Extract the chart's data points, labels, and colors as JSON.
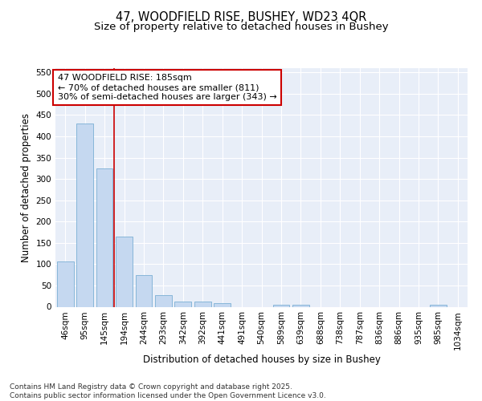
{
  "title_line1": "47, WOODFIELD RISE, BUSHEY, WD23 4QR",
  "title_line2": "Size of property relative to detached houses in Bushey",
  "xlabel": "Distribution of detached houses by size in Bushey",
  "ylabel": "Number of detached properties",
  "categories": [
    "46sqm",
    "95sqm",
    "145sqm",
    "194sqm",
    "244sqm",
    "293sqm",
    "342sqm",
    "392sqm",
    "441sqm",
    "491sqm",
    "540sqm",
    "589sqm",
    "639sqm",
    "688sqm",
    "738sqm",
    "787sqm",
    "836sqm",
    "886sqm",
    "935sqm",
    "985sqm",
    "1034sqm"
  ],
  "values": [
    106,
    430,
    325,
    165,
    74,
    27,
    12,
    12,
    9,
    0,
    0,
    5,
    5,
    0,
    0,
    0,
    0,
    0,
    0,
    4,
    0
  ],
  "bar_color": "#c5d8f0",
  "bar_edge_color": "#7bafd4",
  "vline_x": 3,
  "vline_color": "#cc0000",
  "annotation_box_text": "47 WOODFIELD RISE: 185sqm\n← 70% of detached houses are smaller (811)\n30% of semi-detached houses are larger (343) →",
  "annotation_box_color": "#cc0000",
  "ylim": [
    0,
    560
  ],
  "yticks": [
    0,
    50,
    100,
    150,
    200,
    250,
    300,
    350,
    400,
    450,
    500,
    550
  ],
  "bg_color": "#e8eef8",
  "grid_color": "#ffffff",
  "footer_text": "Contains HM Land Registry data © Crown copyright and database right 2025.\nContains public sector information licensed under the Open Government Licence v3.0.",
  "title_fontsize": 10.5,
  "subtitle_fontsize": 9.5,
  "axis_label_fontsize": 8.5,
  "tick_fontsize": 7.5,
  "annotation_fontsize": 8,
  "footer_fontsize": 6.5
}
